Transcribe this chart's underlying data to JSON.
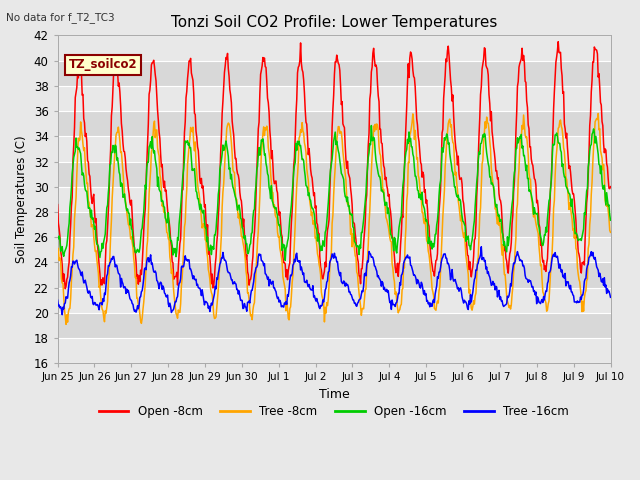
{
  "title": "Tonzi Soil CO2 Profile: Lower Temperatures",
  "no_data_text": "No data for f_T2_TC3",
  "legend_box_text": "TZ_soilco2",
  "xlabel": "Time",
  "ylabel": "Soil Temperatures (C)",
  "ylim": [
    16,
    42
  ],
  "yticks": [
    16,
    18,
    20,
    22,
    24,
    26,
    28,
    30,
    32,
    34,
    36,
    38,
    40,
    42
  ],
  "bg_color": "#e8e8e8",
  "plot_bg_light": "#e8e8e8",
  "plot_bg_dark": "#d8d8d8",
  "line_colors": {
    "open_8cm": "#ff0000",
    "tree_8cm": "#ffa500",
    "open_16cm": "#00cc00",
    "tree_16cm": "#0000ff"
  },
  "legend_labels": [
    "Open -8cm",
    "Tree -8cm",
    "Open -16cm",
    "Tree -16cm"
  ],
  "xtick_labels": [
    "Jun 25",
    "Jun 26",
    "Jun 27",
    "Jun 28",
    "Jun 29",
    "Jun 30",
    "Jul 1",
    "Jul 2",
    "Jul 3",
    "Jul 4",
    "Jul 5",
    "Jul 6",
    "Jul 7",
    "Jul 8",
    "Jul 9",
    "Jul 10"
  ],
  "num_days": 15,
  "pts_per_day": 48
}
